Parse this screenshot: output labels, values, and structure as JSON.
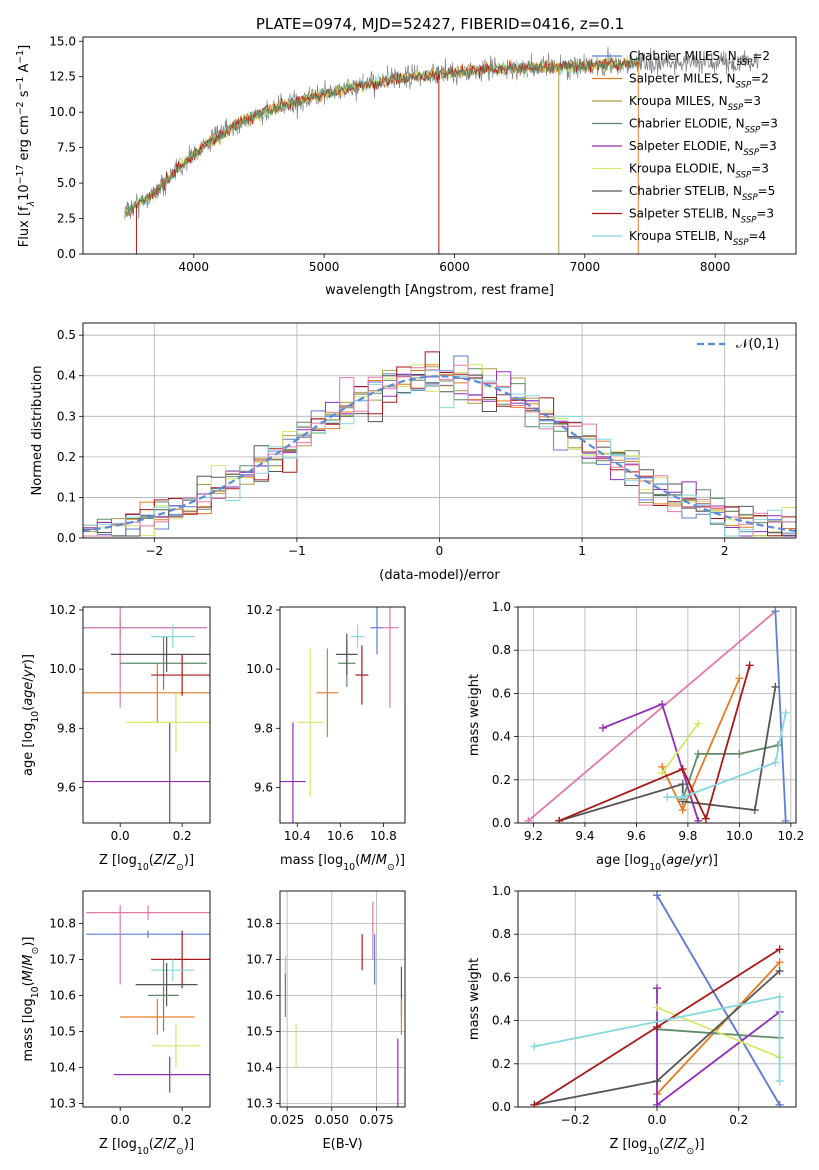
{
  "figure": {
    "title": "PLATE=0974, MJD=52427, FIBERID=0416, z=0.1"
  },
  "colors": {
    "Chabrier MILES": "#5b7fd6",
    "Salpeter MILES": "#e87a1f",
    "Kroupa MILES": "#b09a4a",
    "Chabrier ELODIE": "#5e8a6a",
    "Salpeter ELODIE": "#8f2fb5",
    "Kroupa ELODIE": "#d4e86a",
    "Chabrier STELIB": "#555555",
    "Salpeter STELIB": "#a81818",
    "Kroupa STELIB": "#85d8de",
    "extra_pink": "#e07aa8",
    "data": "#7f7f7f",
    "normal": "#5b8bd6"
  },
  "chart_data": [
    {
      "id": "spectrum",
      "type": "line",
      "title": "PLATE=0974, MJD=52427, FIBERID=0416, z=0.1",
      "xlabel": "wavelength [Angstrom, rest frame]",
      "ylabel": "Flux [f_λ 10^-17 erg cm^-2 s^-1 A^-1]",
      "xlim": [
        3150,
        8620
      ],
      "ylim": [
        0,
        15.3
      ],
      "xticks": [
        4000,
        5000,
        6000,
        7000,
        8000
      ],
      "yticks": [
        0.0,
        2.5,
        5.0,
        7.5,
        10.0,
        12.5,
        15.0
      ],
      "legend_position": "top-right",
      "legend": [
        {
          "base": "Chabrier MILES, N",
          "sub": "SSP",
          "tail": "=2"
        },
        {
          "base": "Salpeter MILES, N",
          "sub": "SSP",
          "tail": "=2"
        },
        {
          "base": "Kroupa MILES, N",
          "sub": "SSP",
          "tail": "=3"
        },
        {
          "base": "Chabrier ELODIE, N",
          "sub": "SSP",
          "tail": "=3"
        },
        {
          "base": "Salpeter ELODIE, N",
          "sub": "SSP",
          "tail": "=3"
        },
        {
          "base": "Kroupa ELODIE, N",
          "sub": "SSP",
          "tail": "=3"
        },
        {
          "base": "Chabrier STELIB, N",
          "sub": "SSP",
          "tail": "=5"
        },
        {
          "base": "Salpeter STELIB, N",
          "sub": "SSP",
          "tail": "=3"
        },
        {
          "base": "Kroupa STELIB, N",
          "sub": "SSP",
          "tail": "=4"
        }
      ],
      "continuum": {
        "x": [
          3480,
          3700,
          3900,
          4100,
          4400,
          4700,
          5000,
          5300,
          5600,
          5900,
          6200,
          6500,
          6800,
          7100,
          7400
        ],
        "y": [
          3.0,
          4.3,
          6.2,
          7.8,
          9.5,
          10.5,
          11.3,
          11.9,
          12.4,
          12.7,
          13.0,
          13.1,
          13.2,
          13.3,
          13.5
        ]
      }
    },
    {
      "id": "residuals",
      "type": "histogram",
      "xlabel": "(data-model)/error",
      "ylabel": "Normed distribution",
      "xlim": [
        -2.5,
        2.5
      ],
      "ylim": [
        0,
        0.53
      ],
      "xticks": [
        -2,
        -1,
        0,
        1,
        2
      ],
      "yticks": [
        0.0,
        0.1,
        0.2,
        0.3,
        0.4,
        0.5
      ],
      "legend": "𝒩(0,1)",
      "legend_position": "top-right",
      "bin_width": 0.1,
      "grid": true
    },
    {
      "id": "age_vs_Z",
      "type": "errorbar",
      "xlabel": "Z [log10(Z/Z⊙)]",
      "ylabel": "age  [log10(age/yr)]",
      "xlim": [
        -0.12,
        0.29
      ],
      "ylim": [
        9.48,
        10.21
      ],
      "xticks": [
        0.0,
        0.2
      ],
      "yticks": [
        9.6,
        9.8,
        10.0,
        10.2
      ],
      "points": [
        {
          "series": "Chabrier MILES",
          "x": 0.0,
          "y": 10.14,
          "xerr": 0.28,
          "yerr": 0.03
        },
        {
          "series": "extra_pink",
          "x": 0.0,
          "y": 10.14,
          "xerr": 0.28,
          "yerr": 0.27
        },
        {
          "series": "Salpeter MILES",
          "x": 0.12,
          "y": 9.92,
          "xerr": 0.25,
          "yerr": 0.1
        },
        {
          "series": "Chabrier ELODIE",
          "x": 0.14,
          "y": 10.02,
          "xerr": 0.14,
          "yerr": 0.09
        },
        {
          "series": "Salpeter ELODIE",
          "x": 0.16,
          "y": 9.62,
          "xerr": 0.36,
          "yerr": 0.2
        },
        {
          "series": "Kroupa ELODIE",
          "x": 0.18,
          "y": 9.82,
          "xerr": 0.16,
          "yerr": 0.1
        },
        {
          "series": "Chabrier STELIB",
          "x": 0.15,
          "y": 10.05,
          "xerr": 0.18,
          "yerr": 0.06
        },
        {
          "series": "Salpeter STELIB",
          "x": 0.2,
          "y": 9.98,
          "xerr": 0.1,
          "yerr": 0.07
        },
        {
          "series": "Kroupa STELIB",
          "x": 0.17,
          "y": 10.11,
          "xerr": 0.07,
          "yerr": 0.04
        }
      ]
    },
    {
      "id": "age_vs_mass",
      "type": "errorbar",
      "xlabel": "mass [log10(M/M⊙)]",
      "ylabel": "",
      "xlim": [
        10.32,
        10.9
      ],
      "ylim": [
        9.48,
        10.21
      ],
      "xticks": [
        10.4,
        10.6,
        10.8
      ],
      "yticks": [
        9.6,
        9.8,
        10.0,
        10.2
      ],
      "points": [
        {
          "series": "Chabrier MILES",
          "x": 10.77,
          "y": 10.14,
          "xerr": 0.03,
          "yerr": 0.09
        },
        {
          "series": "extra_pink",
          "x": 10.83,
          "y": 10.14,
          "xerr": 0.04,
          "yerr": 0.27
        },
        {
          "series": "Salpeter MILES",
          "x": 10.54,
          "y": 9.92,
          "xerr": 0.05,
          "yerr": 0.15
        },
        {
          "series": "Chabrier ELODIE",
          "x": 10.63,
          "y": 10.02,
          "xerr": 0.04,
          "yerr": 0.08
        },
        {
          "series": "Salpeter ELODIE",
          "x": 10.38,
          "y": 9.62,
          "xerr": 0.06,
          "yerr": 0.2
        },
        {
          "series": "Kroupa ELODIE",
          "x": 10.46,
          "y": 9.82,
          "xerr": 0.06,
          "yerr": 0.25
        },
        {
          "series": "Chabrier STELIB",
          "x": 10.63,
          "y": 10.05,
          "xerr": 0.05,
          "yerr": 0.07
        },
        {
          "series": "Salpeter STELIB",
          "x": 10.7,
          "y": 9.98,
          "xerr": 0.03,
          "yerr": 0.1
        },
        {
          "series": "Kroupa STELIB",
          "x": 10.68,
          "y": 10.11,
          "xerr": 0.03,
          "yerr": 0.04
        }
      ]
    },
    {
      "id": "weight_vs_age",
      "type": "line",
      "xlabel": "age  [log10(age/yr)]",
      "ylabel": "mass weight",
      "xlim": [
        9.14,
        10.22
      ],
      "ylim": [
        0,
        1.0
      ],
      "xticks": [
        9.2,
        9.4,
        9.6,
        9.8,
        10.0,
        10.2
      ],
      "yticks": [
        0.0,
        0.2,
        0.4,
        0.6,
        0.8,
        1.0
      ],
      "grid": true,
      "series": [
        {
          "color": "extra_pink",
          "x": [
            9.18,
            10.14
          ],
          "y": [
            0.01,
            0.98
          ]
        },
        {
          "color": "Chabrier MILES",
          "x": [
            10.14,
            10.18
          ],
          "y": [
            0.98,
            0.01
          ]
        },
        {
          "color": "Salpeter MILES",
          "x": [
            9.7,
            9.78,
            10.0
          ],
          "y": [
            0.26,
            0.06,
            0.67
          ]
        },
        {
          "color": "Chabrier ELODIE",
          "x": [
            9.78,
            9.84,
            10.0,
            10.15
          ],
          "y": [
            0.11,
            0.32,
            0.32,
            0.36
          ]
        },
        {
          "color": "Salpeter ELODIE",
          "x": [
            9.47,
            9.7,
            9.84
          ],
          "y": [
            0.44,
            0.55,
            0.01
          ]
        },
        {
          "color": "Kroupa ELODIE",
          "x": [
            9.7,
            9.84
          ],
          "y": [
            0.23,
            0.46
          ]
        },
        {
          "color": "Chabrier STELIB",
          "x": [
            9.3,
            9.78,
            9.78,
            10.06,
            10.14
          ],
          "y": [
            0.01,
            0.18,
            0.1,
            0.06,
            0.63
          ]
        },
        {
          "color": "Salpeter STELIB",
          "x": [
            9.3,
            9.78,
            9.87,
            10.04
          ],
          "y": [
            0.01,
            0.25,
            0.02,
            0.73
          ]
        },
        {
          "color": "Kroupa STELIB",
          "x": [
            9.72,
            9.78,
            10.14,
            10.18
          ],
          "y": [
            0.12,
            0.12,
            0.28,
            0.51
          ]
        }
      ]
    },
    {
      "id": "mass_vs_Z",
      "type": "errorbar",
      "xlabel": "Z [log10(Z/Z⊙)]",
      "ylabel": "mass [log10(M/M⊙)]",
      "xlim": [
        -0.12,
        0.29
      ],
      "ylim": [
        10.29,
        10.89
      ],
      "xticks": [
        0.0,
        0.2
      ],
      "yticks": [
        10.3,
        10.4,
        10.5,
        10.6,
        10.7,
        10.8
      ],
      "points": [
        {
          "series": "extra_pink",
          "x": 0.09,
          "y": 10.83,
          "xerr": 0.2,
          "yerr": 0.02
        },
        {
          "series": "Chabrier MILES",
          "x": 0.09,
          "y": 10.77,
          "xerr": 0.2,
          "yerr": 0.01
        },
        {
          "series": "extra_pink",
          "x": 0.0,
          "y": 10.74,
          "xerr": 0.0,
          "yerr": 0.11
        },
        {
          "series": "Salpeter STELIB",
          "x": 0.2,
          "y": 10.7,
          "xerr": 0.1,
          "yerr": 0.08
        },
        {
          "series": "Kroupa STELIB",
          "x": 0.17,
          "y": 10.67,
          "xerr": 0.07,
          "yerr": 0.03
        },
        {
          "series": "Chabrier STELIB",
          "x": 0.15,
          "y": 10.63,
          "xerr": 0.1,
          "yerr": 0.06
        },
        {
          "series": "Chabrier ELODIE",
          "x": 0.14,
          "y": 10.6,
          "xerr": 0.05,
          "yerr": 0.1
        },
        {
          "series": "Salpeter MILES",
          "x": 0.12,
          "y": 10.54,
          "xerr": 0.12,
          "yerr": 0.05
        },
        {
          "series": "Kroupa ELODIE",
          "x": 0.18,
          "y": 10.46,
          "xerr": 0.08,
          "yerr": 0.06
        },
        {
          "series": "Salpeter ELODIE",
          "x": 0.16,
          "y": 10.38,
          "xerr": 0.18,
          "yerr": 0.05
        }
      ]
    },
    {
      "id": "mass_vs_ebv",
      "type": "errorbar",
      "xlabel": "E(B-V)",
      "ylabel": "",
      "xlim": [
        0.021,
        0.091
      ],
      "ylim": [
        10.29,
        10.89
      ],
      "xticks": [
        0.025,
        0.05,
        0.075
      ],
      "xticklabels": [
        "0.025",
        "0.050",
        "0.075"
      ],
      "yticks": [
        10.3,
        10.4,
        10.5,
        10.6,
        10.7,
        10.8
      ],
      "grid": true,
      "points": [
        {
          "series": "Kroupa STELIB",
          "x": 0.024,
          "y": 10.67,
          "xerr": 0.0,
          "yerr": 0.04
        },
        {
          "series": "Chabrier ELODIE",
          "x": 0.024,
          "y": 10.6,
          "xerr": 0.0,
          "yerr": 0.06
        },
        {
          "series": "Kroupa ELODIE",
          "x": 0.03,
          "y": 10.46,
          "xerr": 0.0,
          "yerr": 0.06
        },
        {
          "series": "Salpeter STELIB",
          "x": 0.067,
          "y": 10.72,
          "xerr": 0.0,
          "yerr": 0.05
        },
        {
          "series": "extra_pink",
          "x": 0.073,
          "y": 10.78,
          "xerr": 0.0,
          "yerr": 0.08
        },
        {
          "series": "Chabrier MILES",
          "x": 0.074,
          "y": 10.7,
          "xerr": 0.0,
          "yerr": 0.07
        },
        {
          "series": "Chabrier STELIB",
          "x": 0.089,
          "y": 10.61,
          "xerr": 0.0,
          "yerr": 0.07
        },
        {
          "series": "Salpeter MILES",
          "x": 0.089,
          "y": 10.54,
          "xerr": 0.0,
          "yerr": 0.05
        },
        {
          "series": "Salpeter ELODIE",
          "x": 0.087,
          "y": 10.38,
          "xerr": 0.0,
          "yerr": 0.1
        }
      ]
    },
    {
      "id": "weight_vs_Z",
      "type": "line",
      "xlabel": "Z [log10(Z/Z⊙)]",
      "ylabel": "mass weight",
      "xlim": [
        -0.34,
        0.34
      ],
      "ylim": [
        0,
        1.0
      ],
      "xticks": [
        -0.2,
        0.0,
        0.2
      ],
      "yticks": [
        0.0,
        0.2,
        0.4,
        0.6,
        0.8,
        1.0
      ],
      "grid": true,
      "series": [
        {
          "color": "extra_pink",
          "x": [
            0.0,
            0.3
          ],
          "y": [
            0.98,
            0.01
          ]
        },
        {
          "color": "Chabrier MILES",
          "x": [
            0.0,
            0.3
          ],
          "y": [
            0.98,
            0.01
          ]
        },
        {
          "color": "Salpeter MILES",
          "x": [
            0.0,
            0.3
          ],
          "y": [
            0.06,
            0.67
          ]
        },
        {
          "color": "Chabrier ELODIE",
          "x": [
            0.0,
            0.3
          ],
          "y": [
            0.36,
            0.32
          ]
        },
        {
          "color": "Salpeter ELODIE",
          "x": [
            0.0,
            0.0,
            0.3
          ],
          "y": [
            0.55,
            0.01,
            0.44
          ]
        },
        {
          "color": "Kroupa ELODIE",
          "x": [
            0.0,
            0.3
          ],
          "y": [
            0.46,
            0.23
          ]
        },
        {
          "color": "Chabrier STELIB",
          "x": [
            -0.3,
            0.0,
            0.3
          ],
          "y": [
            0.01,
            0.12,
            0.63
          ]
        },
        {
          "color": "Salpeter STELIB",
          "x": [
            -0.3,
            0.0,
            0.3
          ],
          "y": [
            0.01,
            0.37,
            0.73
          ]
        },
        {
          "color": "Kroupa STELIB",
          "x": [
            -0.3,
            0.3,
            0.3
          ],
          "y": [
            0.28,
            0.51,
            0.12
          ]
        }
      ]
    }
  ]
}
